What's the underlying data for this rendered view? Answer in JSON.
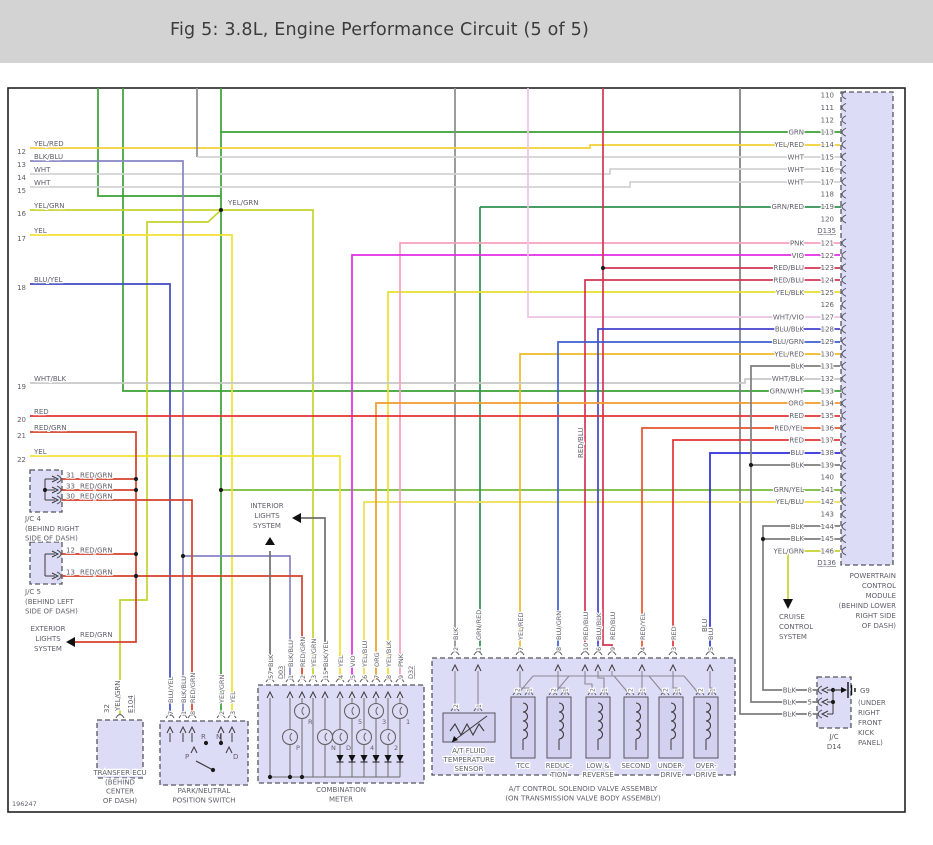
{
  "header": {
    "title": "Fig 5: 3.8L, Engine Performance Circuit (5 of 5)"
  },
  "footer": {
    "diagram_id": "196247"
  },
  "palette": {
    "GRN": "#3aa035",
    "YEL/RED": "#f2cf38",
    "YEL/RED2": "#edb92a",
    "WHT": "#d2d2d2",
    "GRN/RED": "#2f8f4f",
    "PNK": "#f4a0bc",
    "VIO": "#e32ce3",
    "RED/BLU": "#d23554",
    "YEL/BLK": "#e8df2b",
    "WHT/VIO": "#eec2ea",
    "BLU/BLK": "#4343cf",
    "BLU/GRN": "#3a5fd2",
    "BLK": "#7d7d7d",
    "BLKD": "#8a8a8a",
    "WHT/BLK": "#c8c8c8",
    "ORG": "#ef9b2b",
    "RED": "#e23333",
    "RED/YEL": "#e5542b",
    "BLU": "#2d2dd8",
    "GRN/YEL": "#76b83a",
    "YEL/BLU": "#ecdf52",
    "YEL/GRN": "#c6d32e",
    "BLU/YEL": "#3f49c4",
    "BLK/BLU": "#8585c4",
    "RED/GRN": "#d4402c",
    "YEL": "#f0e130",
    "INT": "#6e6e6e"
  },
  "left_pins": [
    {
      "n": "12",
      "color": "YEL/RED"
    },
    {
      "n": "13",
      "color": "BLK/BLU"
    },
    {
      "n": "14",
      "color": "WHT"
    },
    {
      "n": "15",
      "color": "WHT"
    },
    {
      "n": "16",
      "color": "YEL/GRN"
    },
    {
      "n": "17",
      "color": "YEL"
    },
    {
      "n": "18",
      "color": "BLU/YEL"
    },
    {
      "n": "19",
      "color": "WHT/BLK"
    },
    {
      "n": "20",
      "color": "RED"
    },
    {
      "n": "21",
      "color": "RED/GRN"
    },
    {
      "n": "22",
      "color": "YEL"
    }
  ],
  "pcm": {
    "name_lines": [
      "POWERTRAIN",
      "CONTROL",
      "MODULE",
      "(BEHIND LOWER",
      "RIGHT SIDE",
      "OF DASH)"
    ],
    "code_top": "D135",
    "code_bottom": "D136",
    "pins": [
      {
        "n": "110",
        "color": ""
      },
      {
        "n": "111",
        "color": ""
      },
      {
        "n": "112",
        "color": ""
      },
      {
        "n": "113",
        "color": "GRN"
      },
      {
        "n": "114",
        "color": "YEL/RED"
      },
      {
        "n": "115",
        "color": "WHT"
      },
      {
        "n": "116",
        "color": "WHT"
      },
      {
        "n": "117",
        "color": "WHT"
      },
      {
        "n": "118",
        "color": ""
      },
      {
        "n": "119",
        "color": "GRN/RED"
      },
      {
        "n": "120",
        "color": ""
      },
      {
        "n": "121",
        "color": "PNK"
      },
      {
        "n": "122",
        "color": "VIO"
      },
      {
        "n": "123",
        "color": "RED/BLU"
      },
      {
        "n": "124",
        "color": "RED/BLU"
      },
      {
        "n": "125",
        "color": "YEL/BLK"
      },
      {
        "n": "126",
        "color": ""
      },
      {
        "n": "127",
        "color": "WHT/VIO"
      },
      {
        "n": "128",
        "color": "BLU/BLK"
      },
      {
        "n": "129",
        "color": "BLU/GRN"
      },
      {
        "n": "130",
        "color": "YEL/RED"
      },
      {
        "n": "131",
        "color": "BLK"
      },
      {
        "n": "132",
        "color": "WHT/BLK"
      },
      {
        "n": "133",
        "color": "GRN/WHT"
      },
      {
        "n": "134",
        "color": "ORG"
      },
      {
        "n": "135",
        "color": "RED"
      },
      {
        "n": "136",
        "color": "RED/YEL"
      },
      {
        "n": "137",
        "color": "RED"
      },
      {
        "n": "138",
        "color": "BLU"
      },
      {
        "n": "139",
        "color": "BLK"
      },
      {
        "n": "140",
        "color": ""
      },
      {
        "n": "141",
        "color": "GRN/YEL"
      },
      {
        "n": "142",
        "color": "YEL/BLU"
      },
      {
        "n": "143",
        "color": ""
      },
      {
        "n": "144",
        "color": "BLK"
      },
      {
        "n": "145",
        "color": "BLK"
      },
      {
        "n": "146",
        "color": "YEL/GRN"
      }
    ]
  },
  "jc4": {
    "name": "J/C 4",
    "loc_lines": [
      "(BEHIND RIGHT",
      "SIDE OF DASH)"
    ],
    "pins": [
      {
        "n": "31",
        "color": "RED/GRN"
      },
      {
        "n": "33",
        "color": "RED/GRN"
      },
      {
        "n": "30",
        "color": "RED/GRN"
      }
    ]
  },
  "jc5": {
    "name": "J/C 5",
    "loc_lines": [
      "(BEHIND LEFT",
      "SIDE OF DASH)"
    ],
    "pins": [
      {
        "n": "12",
        "color": "RED/GRN"
      },
      {
        "n": "13",
        "color": "RED/GRN"
      }
    ]
  },
  "exterior_lights": {
    "lines": [
      "EXTERIOR",
      "LIGHTS",
      "SYSTEM"
    ],
    "wire": "RED/GRN"
  },
  "interior_lights": {
    "lines": [
      "INTERIOR",
      "LIGHTS",
      "SYSTEM"
    ]
  },
  "cruise": {
    "lines": [
      "CRUISE",
      "CONTROL",
      "SYSTEM"
    ]
  },
  "wire_tags": {
    "yel_grn": "YEL/GRN",
    "red_blu": "RED/BLU",
    "blu": "BLU"
  },
  "transfer_ecu": {
    "pin": "32",
    "wire": "YEL/GRN",
    "code": "E104",
    "name_lines": [
      "TRANSFER ECU",
      "(BEHIND",
      "CENTER",
      "OF DASH)"
    ]
  },
  "pnp": {
    "name_lines": [
      "PARK/NEUTRAL",
      "POSITION SWITCH"
    ],
    "pins": [
      {
        "n": "7",
        "color": "BLU/YEL"
      },
      {
        "n": "1",
        "color": "BLK/BLU"
      },
      {
        "n": "8",
        "color": "RED/GRN"
      },
      {
        "n": "2",
        "color": "YEL/GRN"
      },
      {
        "n": "3",
        "color": "YEL"
      }
    ],
    "positions": [
      "R",
      "N",
      "P",
      "D"
    ]
  },
  "meter": {
    "name_lines": [
      "COMBINATION",
      "METER"
    ],
    "code_left": "D03",
    "code_right": "D32",
    "pins": [
      {
        "n": "57",
        "color": "BLK"
      },
      {
        "n": "1",
        "color": "BLK/BLU"
      },
      {
        "n": "2",
        "color": "RED/GRN"
      },
      {
        "n": "3",
        "color": "YEL/GRN"
      },
      {
        "n": "15",
        "color": "BLK/YEL"
      },
      {
        "n": "4",
        "color": "YEL"
      },
      {
        "n": "5",
        "color": "VIO"
      },
      {
        "n": "6",
        "color": "YEL/BLU"
      },
      {
        "n": "7",
        "color": "ORG"
      },
      {
        "n": "8",
        "color": "YEL/BLK"
      },
      {
        "n": "9",
        "color": "PNK"
      }
    ],
    "lamps_top": [
      "R",
      "5",
      "3",
      "1"
    ],
    "lamps_bottom": [
      "P",
      "N",
      "D",
      "4",
      "2"
    ]
  },
  "solenoid": {
    "name_lines": [
      "A/T CONTROL SOLENOID VALVE ASSEMBLY",
      "(ON TRANSMISSION VALVE BODY ASSEMBLY)"
    ],
    "pins": [
      {
        "n": "2",
        "color": "BLK"
      },
      {
        "n": "1",
        "color": "GRN/RED"
      },
      {
        "n": "7",
        "color": "YEL/RED"
      },
      {
        "n": "8",
        "color": "BLU/GRN"
      },
      {
        "n": "10",
        "color": "RED/BLU"
      },
      {
        "n": "6",
        "color": "BLU/BLK"
      },
      {
        "n": "9",
        "color": "RED/BLU"
      },
      {
        "n": "4",
        "color": "RED/YEL"
      },
      {
        "n": "3",
        "color": "RED"
      },
      {
        "n": "5",
        "color": "BLU"
      }
    ],
    "sensor_lines": [
      "A/T FLUID",
      "TEMPERATURE",
      "SENSOR"
    ],
    "inner_pins": [
      "2",
      "1"
    ],
    "valves": [
      [
        "TCC"
      ],
      [
        "REDUC-",
        "TION"
      ],
      [
        "LOW &",
        "REVERSE"
      ],
      [
        "SECOND"
      ],
      [
        "UNDER-",
        "DRIVE"
      ],
      [
        "OVER-",
        "DRIVE"
      ]
    ]
  },
  "jcd14": {
    "name_lines": [
      "J/C",
      "D14"
    ],
    "pins": [
      {
        "n": "8",
        "color": "BLK"
      },
      {
        "n": "5",
        "color": "BLK"
      },
      {
        "n": "6",
        "color": "BLK"
      }
    ],
    "ground": {
      "id": "G9",
      "loc_lines": [
        "(UNDER",
        "RIGHT",
        "FRONT",
        "KICK",
        "PANEL)"
      ]
    }
  }
}
